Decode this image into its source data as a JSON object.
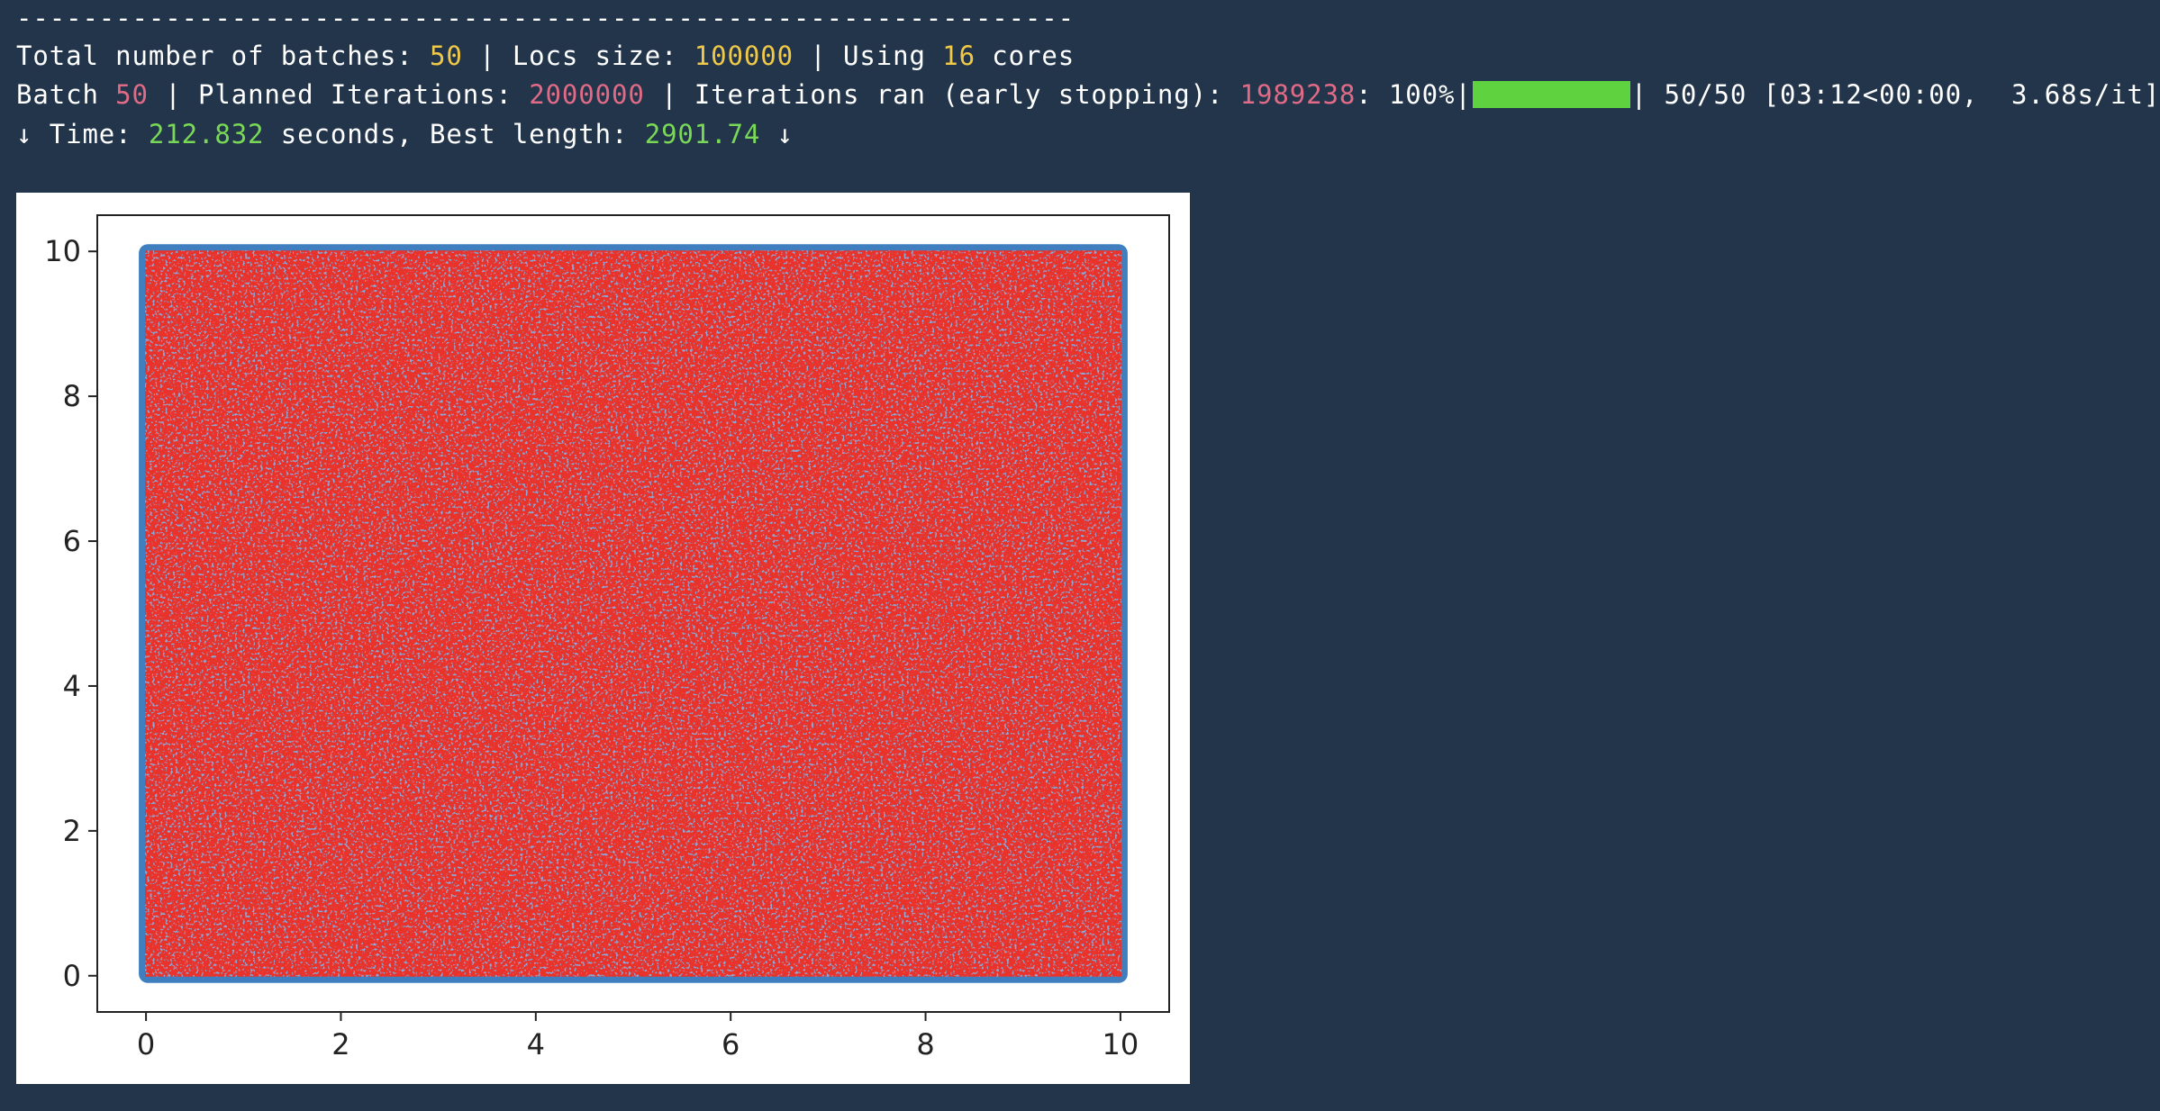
{
  "terminal": {
    "separator": "----------------------------------------------------------------",
    "line1": {
      "prefix": "Total number of batches: ",
      "batches": "50",
      "mid1": " | Locs size: ",
      "locs_size": "100000",
      "mid2": " | Using ",
      "cores": "16",
      "suffix": " cores"
    },
    "line2": {
      "prefix": "Batch ",
      "batch": "50",
      "mid1": " | Planned Iterations: ",
      "planned_iterations": "2000000",
      "mid2": " | Iterations ran (early stopping): ",
      "iterations_ran": "1989238",
      "percent": ": 100%|",
      "progress_fraction": 1.0,
      "suffix": "| 50/50 [03:12<00:00,  3.68s/it]"
    },
    "line3": {
      "prefix": "↓ Time: ",
      "time": "212.832",
      "mid": " seconds, Best length: ",
      "best_length": "2901.74",
      "suffix": " ↓"
    },
    "colors": {
      "background": "#22354a",
      "yellow": "#f1c948",
      "pink": "#e06b86",
      "green": "#79d957",
      "progress": "#5ed23f"
    }
  },
  "chart_data": {
    "type": "scatter",
    "title": "",
    "xlabel": "",
    "ylabel": "",
    "xlim": [
      -0.5,
      10.5
    ],
    "ylim": [
      -0.5,
      10.5
    ],
    "xticks": [
      0,
      2,
      4,
      6,
      8,
      10
    ],
    "yticks": [
      0,
      2,
      4,
      6,
      8,
      10
    ],
    "grid": false,
    "series": [
      {
        "kind": "scatter",
        "color": "#3f7fbf",
        "region": {
          "x": [
            0,
            10
          ],
          "y": [
            0,
            10
          ]
        }
      },
      {
        "kind": "route",
        "color": "#e8322a",
        "region": {
          "x": [
            0,
            10
          ],
          "y": [
            0,
            10
          ]
        }
      }
    ]
  }
}
